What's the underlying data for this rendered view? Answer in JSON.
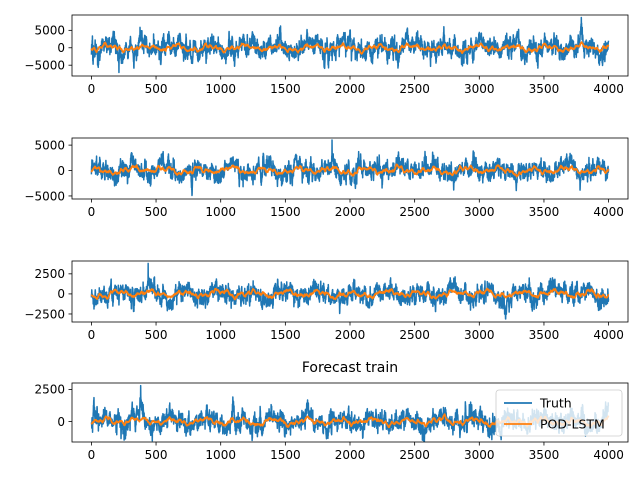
{
  "chart_data": [
    {
      "type": "line",
      "title": "",
      "xlim": [
        -150,
        4150
      ],
      "ylim": [
        -8100,
        9400
      ],
      "x_ticks": [
        0,
        500,
        1000,
        1500,
        2000,
        2500,
        3000,
        3500,
        4000
      ],
      "x_tick_labels": [
        "0",
        "500",
        "1000",
        "1500",
        "2000",
        "2500",
        "3000",
        "3500",
        "4000"
      ],
      "y_ticks": [
        5000,
        0,
        -5000
      ],
      "y_tick_labels": [
        "5000",
        "0",
        "−5000"
      ],
      "n_points": 4000,
      "series": [
        {
          "label": "Truth",
          "color": "#1f77b4",
          "amplitude": 2600,
          "extreme_min": -7100,
          "extreme_max": 8700
        },
        {
          "label": "POD-LSTM",
          "color": "#ff7f0e",
          "amplitude": 1100
        }
      ]
    },
    {
      "type": "line",
      "title": "",
      "xlim": [
        -150,
        4150
      ],
      "ylim": [
        -5600,
        6400
      ],
      "x_ticks": [
        0,
        500,
        1000,
        1500,
        2000,
        2500,
        3000,
        3500,
        4000
      ],
      "x_tick_labels": [
        "0",
        "500",
        "1000",
        "1500",
        "2000",
        "2500",
        "3000",
        "3500",
        "4000"
      ],
      "y_ticks": [
        5000,
        0,
        -5000
      ],
      "y_tick_labels": [
        "5000",
        "0",
        "−5000"
      ],
      "n_points": 4000,
      "series": [
        {
          "label": "Truth",
          "color": "#1f77b4",
          "amplitude": 1700,
          "extreme_min": -4900,
          "extreme_max": 6000
        },
        {
          "label": "POD-LSTM",
          "color": "#ff7f0e",
          "amplitude": 800
        }
      ]
    },
    {
      "type": "line",
      "title": "",
      "xlim": [
        -150,
        4150
      ],
      "ylim": [
        -3500,
        4100
      ],
      "x_ticks": [
        0,
        500,
        1000,
        1500,
        2000,
        2500,
        3000,
        3500,
        4000
      ],
      "x_tick_labels": [
        "0",
        "500",
        "1000",
        "1500",
        "2000",
        "2500",
        "3000",
        "3500",
        "4000"
      ],
      "y_ticks": [
        2500,
        0,
        -2500
      ],
      "y_tick_labels": [
        "2500",
        "0",
        "−2500"
      ],
      "n_points": 4000,
      "series": [
        {
          "label": "Truth",
          "color": "#1f77b4",
          "amplitude": 1100,
          "extreme_min": -3100,
          "extreme_max": 3800
        },
        {
          "label": "POD-LSTM",
          "color": "#ff7f0e",
          "amplitude": 520
        }
      ]
    },
    {
      "type": "line",
      "title": "Forecast train",
      "xlim": [
        -150,
        4150
      ],
      "ylim": [
        -1600,
        3000
      ],
      "x_ticks": [
        0,
        500,
        1000,
        1500,
        2000,
        2500,
        3000,
        3500,
        4000
      ],
      "x_tick_labels": [
        "0",
        "500",
        "1000",
        "1500",
        "2000",
        "2500",
        "3000",
        "3500",
        "4000"
      ],
      "y_ticks": [
        2500,
        0
      ],
      "y_tick_labels": [
        "2500",
        "0"
      ],
      "n_points": 4000,
      "legend": {
        "position": "lower-right",
        "entries": [
          "Truth",
          "POD-LSTM"
        ]
      },
      "series": [
        {
          "label": "Truth",
          "color": "#1f77b4",
          "amplitude": 700,
          "extreme_min": -1500,
          "extreme_max": 2800
        },
        {
          "label": "POD-LSTM",
          "color": "#ff7f0e",
          "amplitude": 320
        }
      ]
    }
  ]
}
